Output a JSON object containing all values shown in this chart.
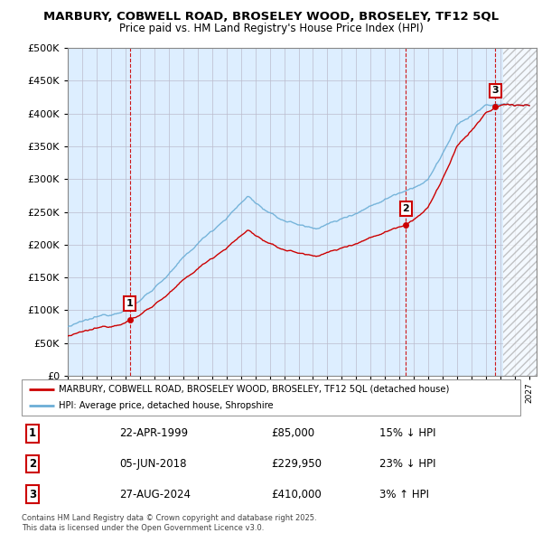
{
  "title": "MARBURY, COBWELL ROAD, BROSELEY WOOD, BROSELEY, TF12 5QL",
  "subtitle": "Price paid vs. HM Land Registry's House Price Index (HPI)",
  "ylim": [
    0,
    500000
  ],
  "yticks": [
    0,
    50000,
    100000,
    150000,
    200000,
    250000,
    300000,
    350000,
    400000,
    450000,
    500000
  ],
  "xlim_start": 1995.0,
  "xlim_end": 2027.5,
  "sales": [
    {
      "date_num": 1999.31,
      "price": 85000,
      "label": "1"
    },
    {
      "date_num": 2018.43,
      "price": 229950,
      "label": "2"
    },
    {
      "date_num": 2024.65,
      "price": 410000,
      "label": "3"
    }
  ],
  "hpi_color": "#6baed6",
  "sale_color": "#cc0000",
  "dashed_color": "#cc0000",
  "chart_bg": "#ddeeff",
  "background_color": "#ffffff",
  "grid_color": "#bbbbcc",
  "legend_entries": [
    "MARBURY, COBWELL ROAD, BROSELEY WOOD, BROSELEY, TF12 5QL (detached house)",
    "HPI: Average price, detached house, Shropshire"
  ],
  "table_entries": [
    {
      "num": "1",
      "date": "22-APR-1999",
      "price": "£85,000",
      "note": "15% ↓ HPI"
    },
    {
      "num": "2",
      "date": "05-JUN-2018",
      "price": "£229,950",
      "note": "23% ↓ HPI"
    },
    {
      "num": "3",
      "date": "27-AUG-2024",
      "price": "£410,000",
      "note": "3% ↑ HPI"
    }
  ],
  "footer": "Contains HM Land Registry data © Crown copyright and database right 2025.\nThis data is licensed under the Open Government Licence v3.0."
}
